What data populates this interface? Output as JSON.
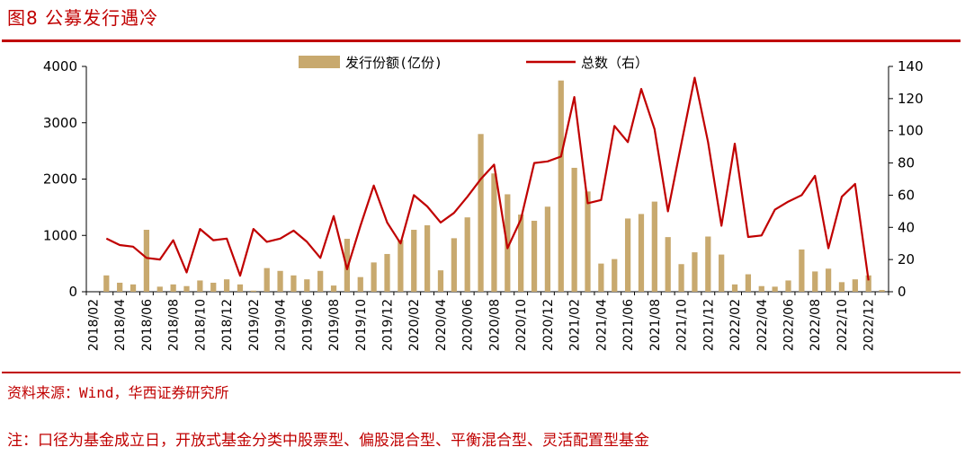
{
  "header": {
    "figure_title": "图8 公募发行遇冷"
  },
  "footer": {
    "source": "资料来源：Wind，华西证券研究所",
    "note": "注：口径为基金成立日，开放式基金分类中股票型、偏股混合型、平衡混合型、灵活配置型基金"
  },
  "colors": {
    "bar": "#c8a96e",
    "line": "#c00000",
    "rule": "#c00000"
  },
  "chart_data": {
    "type": "bar+line",
    "categories": [
      "2018/02",
      "2018/03",
      "2018/04",
      "2018/05",
      "2018/06",
      "2018/07",
      "2018/08",
      "2018/09",
      "2018/10",
      "2018/11",
      "2018/12",
      "2019/01",
      "2019/02",
      "2019/03",
      "2019/04",
      "2019/05",
      "2019/06",
      "2019/07",
      "2019/08",
      "2019/09",
      "2019/10",
      "2019/11",
      "2019/12",
      "2020/01",
      "2020/02",
      "2020/03",
      "2020/04",
      "2020/05",
      "2020/06",
      "2020/07",
      "2020/08",
      "2020/09",
      "2020/10",
      "2020/11",
      "2020/12",
      "2021/01",
      "2021/02",
      "2021/03",
      "2021/04",
      "2021/05",
      "2021/06",
      "2021/07",
      "2021/08",
      "2021/09",
      "2021/10",
      "2021/11",
      "2021/12",
      "2022/01",
      "2022/02",
      "2022/03",
      "2022/04",
      "2022/05",
      "2022/06",
      "2022/07",
      "2022/08",
      "2022/09",
      "2022/10",
      "2022/11",
      "2022/12",
      "2023/01"
    ],
    "xtick_labels": [
      "2018/02",
      "2018/04",
      "2018/06",
      "2018/08",
      "2018/10",
      "2018/12",
      "2019/02",
      "2019/04",
      "2019/06",
      "2019/08",
      "2019/10",
      "2019/12",
      "2020/02",
      "2020/04",
      "2020/06",
      "2020/08",
      "2020/10",
      "2020/12",
      "2021/02",
      "2021/04",
      "2021/06",
      "2021/08",
      "2021/10",
      "2021/12",
      "2022/02",
      "2022/04",
      "2022/06",
      "2022/08",
      "2022/10",
      "2022/12"
    ],
    "series": [
      {
        "name": "发行份额(亿份)",
        "type": "bar",
        "axis": "left",
        "values": [
          0,
          290,
          160,
          130,
          1100,
          90,
          130,
          100,
          200,
          160,
          220,
          130,
          20,
          420,
          370,
          290,
          220,
          370,
          110,
          940,
          260,
          520,
          670,
          920,
          1100,
          1180,
          380,
          950,
          1320,
          2800,
          2100,
          1730,
          1370,
          1260,
          1510,
          3750,
          2200,
          1780,
          500,
          580,
          1300,
          1380,
          1600,
          970,
          490,
          700,
          980,
          660,
          130,
          310,
          100,
          90,
          200,
          750,
          360,
          410,
          170,
          220,
          290,
          30
        ]
      },
      {
        "name": "总数（右）",
        "type": "line",
        "axis": "right",
        "values": [
          null,
          33,
          29,
          28,
          21,
          20,
          32,
          12,
          39,
          32,
          33,
          10,
          39,
          31,
          33,
          38,
          31,
          21,
          47,
          14,
          41,
          66,
          43,
          30,
          60,
          53,
          43,
          49,
          59,
          70,
          79,
          27,
          45,
          80,
          81,
          84,
          121,
          55,
          57,
          103,
          93,
          126,
          101,
          50,
          92,
          133,
          93,
          41,
          92,
          34,
          35,
          51,
          56,
          60,
          72,
          27,
          59,
          67,
          7,
          null
        ]
      }
    ],
    "ylim_left": [
      0,
      4000
    ],
    "ylim_right": [
      0,
      140
    ],
    "yticks_left": [
      "0",
      "1000",
      "2000",
      "3000",
      "4000"
    ],
    "yticks_right": [
      "0",
      "20",
      "40",
      "60",
      "80",
      "100",
      "120",
      "140"
    ],
    "legend": {
      "position": "top-center",
      "items": [
        "发行份额(亿份)",
        "总数（右）"
      ]
    }
  }
}
